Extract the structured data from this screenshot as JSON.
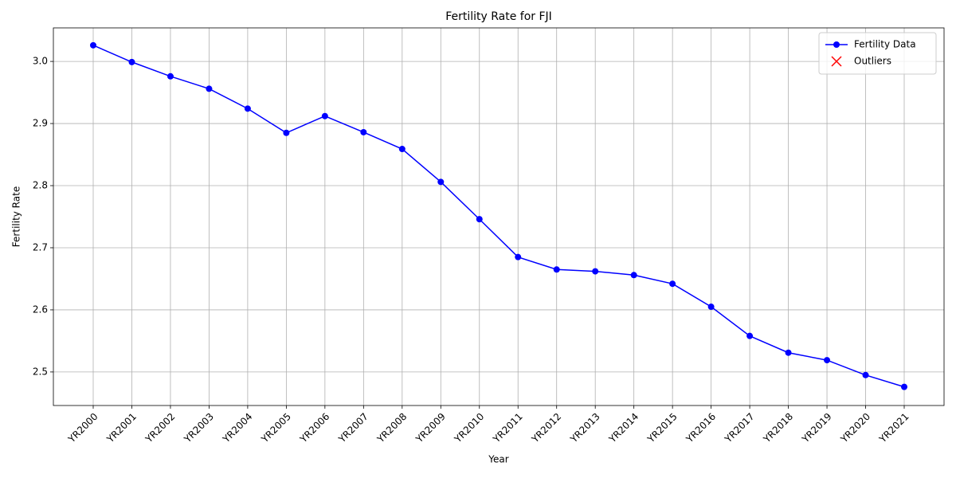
{
  "chart_data": {
    "type": "line",
    "title": "Fertility Rate for FJI",
    "xlabel": "Year",
    "ylabel": "Fertility Rate",
    "categories": [
      "YR2000",
      "YR2001",
      "YR2002",
      "YR2003",
      "YR2004",
      "YR2005",
      "YR2006",
      "YR2007",
      "YR2008",
      "YR2009",
      "YR2010",
      "YR2011",
      "YR2012",
      "YR2013",
      "YR2014",
      "YR2015",
      "YR2016",
      "YR2017",
      "YR2018",
      "YR2019",
      "YR2020",
      "YR2021"
    ],
    "series": [
      {
        "name": "Fertility Data",
        "color": "#0000ff",
        "marker": "o",
        "values": [
          3.026,
          2.999,
          2.976,
          2.956,
          2.924,
          2.885,
          2.912,
          2.886,
          2.859,
          2.806,
          2.746,
          2.685,
          2.665,
          2.662,
          2.656,
          2.642,
          2.605,
          2.558,
          2.531,
          2.519,
          2.495,
          2.476
        ]
      },
      {
        "name": "Outliers",
        "color": "#ff0000",
        "marker": "x",
        "values": [
          null,
          null,
          null,
          null,
          null,
          null,
          null,
          null,
          null,
          null,
          null,
          null,
          null,
          null,
          null,
          null,
          null,
          null,
          null,
          null,
          null,
          null
        ]
      }
    ],
    "ylim": [
      2.446,
      3.054
    ],
    "yticks": [
      2.5,
      2.6,
      2.7,
      2.8,
      2.9,
      {
        "value": 3,
        "label": "3.0"
      }
    ],
    "grid": true,
    "legend": "upper right"
  }
}
